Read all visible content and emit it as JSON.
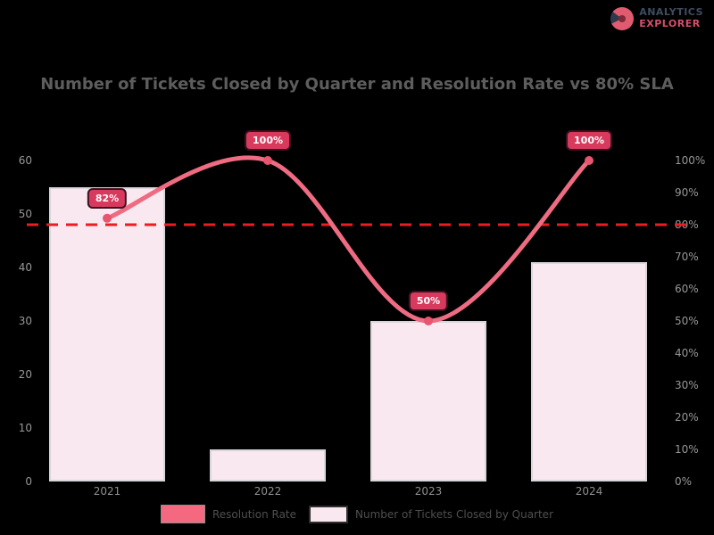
{
  "logo": {
    "line1": "ANALYTICS",
    "line2": "EXPLORER",
    "icon": "pie-chart-logo-icon"
  },
  "title": "Number of Tickets Closed by Quarter and Resolution Rate vs 80% SLA",
  "colors": {
    "background": "#000000",
    "bar_fill": "#f9e8ef",
    "bar_border": "#d8d6da",
    "line": "#ee6b82",
    "marker": "#e7556f",
    "badge_fill": "#d83a5e",
    "badge_border": "#3d1220",
    "target_line": "#ea1c24",
    "axis_text": "#979797",
    "title_text": "#5d5d5d",
    "legend_text": "#4f4f4f"
  },
  "chart_data": {
    "type": "bar",
    "subtype": "bar+line combo, dual axis",
    "title": "Number of Tickets Closed by Quarter and Resolution Rate vs 80% SLA",
    "categories": [
      "2021",
      "2022",
      "2023",
      "2024"
    ],
    "series": [
      {
        "name": "Number of Tickets Closed by Quarter",
        "type": "bar",
        "axis": "left",
        "values": [
          55,
          6,
          30,
          41
        ],
        "color": "#f9e8ef"
      },
      {
        "name": "Resolution Rate",
        "type": "line",
        "axis": "right",
        "values": [
          82,
          100,
          50,
          100
        ],
        "point_labels": [
          "82%",
          "100%",
          "50%",
          "100%"
        ],
        "color": "#ee6b82"
      }
    ],
    "left_axis": {
      "ticks": [
        "0",
        "10",
        "20",
        "30",
        "40",
        "50",
        "60"
      ],
      "range": [
        0,
        60
      ]
    },
    "right_axis": {
      "ticks": [
        "0%",
        "10%",
        "20%",
        "30%",
        "40%",
        "50%",
        "60%",
        "70%",
        "80%",
        "90%",
        "100%"
      ],
      "range": [
        0,
        100
      ]
    },
    "target_line": {
      "value": 80,
      "axis": "right",
      "style": "dashed",
      "color": "#ea1c24"
    },
    "legend": [
      {
        "label": "Resolution Rate",
        "swatch_color": "#f4697f"
      },
      {
        "label": "Number of Tickets Closed by Quarter",
        "swatch_color": "#f9e8ef"
      }
    ],
    "grid": false,
    "legend_position": "bottom-center",
    "xlabel": "",
    "ylabel": ""
  }
}
